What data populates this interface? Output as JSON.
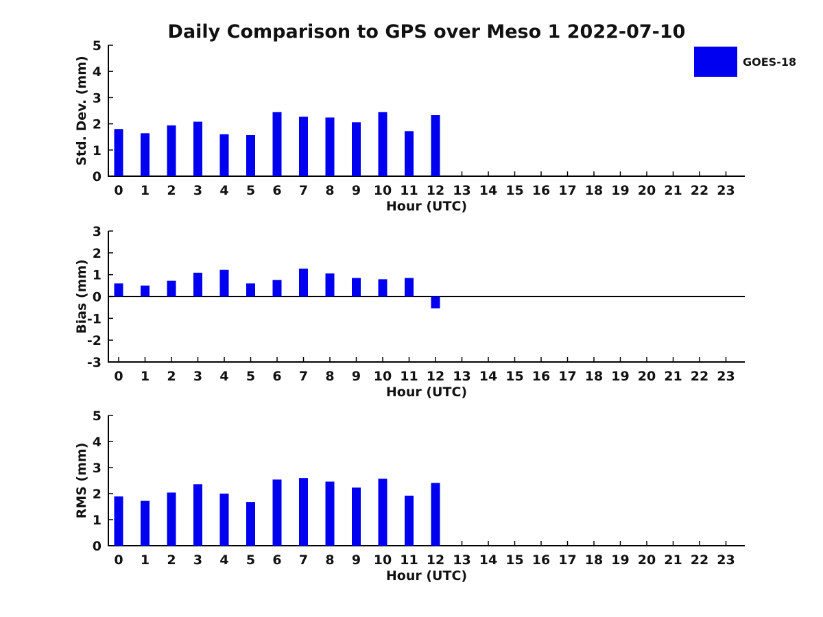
{
  "title": "Daily Comparison to GPS over Meso 1 2022-07-10",
  "legend": {
    "label": "GOES-18",
    "color": "#0000f0",
    "position": "top-right"
  },
  "colors": {
    "bar": "#0000f0",
    "axis": "#000000",
    "text": "#111111",
    "background": "#ffffff"
  },
  "chart_data": [
    {
      "type": "bar",
      "name": "std-dev",
      "series_name": "GOES-18",
      "xlabel": "Hour (UTC)",
      "ylabel": "Std. Dev. (mm)",
      "ylim": [
        0,
        5
      ],
      "yticks": [
        0,
        1,
        2,
        3,
        4,
        5
      ],
      "grid": false,
      "categories": [
        "0",
        "1",
        "2",
        "3",
        "4",
        "5",
        "6",
        "7",
        "8",
        "9",
        "10",
        "11",
        "12",
        "13",
        "14",
        "15",
        "16",
        "17",
        "18",
        "19",
        "20",
        "21",
        "22",
        "23"
      ],
      "values": [
        1.8,
        1.64,
        1.94,
        2.08,
        1.6,
        1.57,
        2.45,
        2.27,
        2.24,
        2.06,
        2.45,
        1.72,
        2.33,
        null,
        null,
        null,
        null,
        null,
        null,
        null,
        null,
        null,
        null,
        null
      ]
    },
    {
      "type": "bar",
      "name": "bias",
      "series_name": "GOES-18",
      "xlabel": "Hour (UTC)",
      "ylabel": "Bias (mm)",
      "ylim": [
        -3,
        3
      ],
      "yticks": [
        -3,
        -2,
        -1,
        0,
        1,
        2,
        3
      ],
      "zero_line": true,
      "grid": false,
      "categories": [
        "0",
        "1",
        "2",
        "3",
        "4",
        "5",
        "6",
        "7",
        "8",
        "9",
        "10",
        "11",
        "12",
        "13",
        "14",
        "15",
        "16",
        "17",
        "18",
        "19",
        "20",
        "21",
        "22",
        "23"
      ],
      "values": [
        0.6,
        0.5,
        0.72,
        1.09,
        1.22,
        0.6,
        0.76,
        1.28,
        1.06,
        0.85,
        0.79,
        0.85,
        -0.54,
        null,
        null,
        null,
        null,
        null,
        null,
        null,
        null,
        null,
        null,
        null
      ]
    },
    {
      "type": "bar",
      "name": "rms",
      "series_name": "GOES-18",
      "xlabel": "Hour (UTC)",
      "ylabel": "RMS (mm)",
      "ylim": [
        0,
        5
      ],
      "yticks": [
        0,
        1,
        2,
        3,
        4,
        5
      ],
      "grid": false,
      "categories": [
        "0",
        "1",
        "2",
        "3",
        "4",
        "5",
        "6",
        "7",
        "8",
        "9",
        "10",
        "11",
        "12",
        "13",
        "14",
        "15",
        "16",
        "17",
        "18",
        "19",
        "20",
        "21",
        "22",
        "23"
      ],
      "values": [
        1.89,
        1.72,
        2.04,
        2.36,
        2.0,
        1.68,
        2.54,
        2.6,
        2.46,
        2.23,
        2.57,
        1.92,
        2.41,
        null,
        null,
        null,
        null,
        null,
        null,
        null,
        null,
        null,
        null,
        null
      ]
    }
  ]
}
